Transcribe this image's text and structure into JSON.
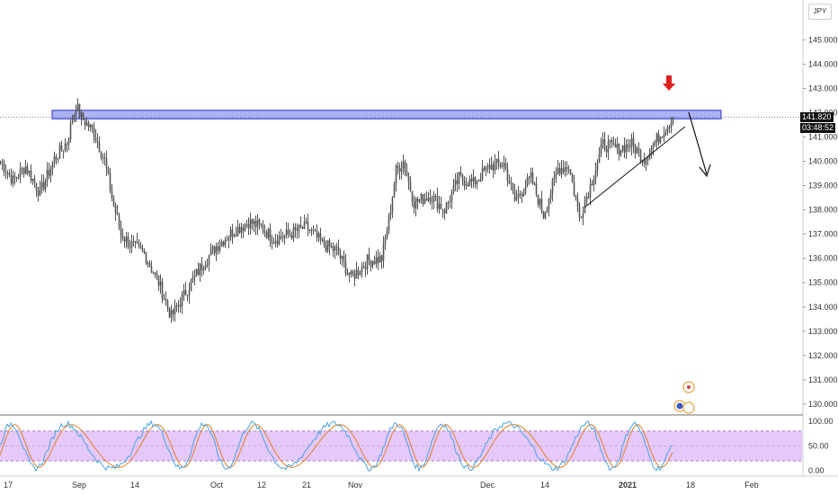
{
  "currency": "JPY",
  "last_price_label": "141.820",
  "countdown_label": "03:48:52",
  "chart_data": [
    {
      "type": "candlestick",
      "title": "",
      "ylim": [
        129.7,
        146.2
      ],
      "y_ticks": [
        "145.000",
        "144.000",
        "143.000",
        "142.000",
        "141.000",
        "140.000",
        "139.000",
        "138.000",
        "137.000",
        "136.000",
        "135.000",
        "134.000",
        "133.000",
        "132.000",
        "131.000",
        "130.000"
      ],
      "x_tick_labels": [
        "17",
        "Sep",
        "14",
        "Oct",
        "12",
        "21",
        "Nov",
        "Dec",
        "14",
        "2021",
        "18",
        "Feb"
      ],
      "price_path": [
        {
          "i": 0,
          "v": 140.0
        },
        {
          "i": 14,
          "v": 139.2
        },
        {
          "i": 28,
          "v": 139.8
        },
        {
          "i": 44,
          "v": 138.7
        },
        {
          "i": 60,
          "v": 140.1
        },
        {
          "i": 74,
          "v": 140.8
        },
        {
          "i": 84,
          "v": 142.3
        },
        {
          "i": 90,
          "v": 141.8
        },
        {
          "i": 104,
          "v": 141.2
        },
        {
          "i": 116,
          "v": 140.0
        },
        {
          "i": 124,
          "v": 138.5
        },
        {
          "i": 134,
          "v": 137.0
        },
        {
          "i": 144,
          "v": 136.6
        },
        {
          "i": 160,
          "v": 136.2
        },
        {
          "i": 176,
          "v": 135.0
        },
        {
          "i": 190,
          "v": 133.6
        },
        {
          "i": 206,
          "v": 134.6
        },
        {
          "i": 222,
          "v": 135.6
        },
        {
          "i": 240,
          "v": 136.5
        },
        {
          "i": 258,
          "v": 137.1
        },
        {
          "i": 276,
          "v": 137.5
        },
        {
          "i": 290,
          "v": 137.3
        },
        {
          "i": 304,
          "v": 136.8
        },
        {
          "i": 322,
          "v": 137.0
        },
        {
          "i": 340,
          "v": 137.3
        },
        {
          "i": 358,
          "v": 136.6
        },
        {
          "i": 374,
          "v": 136.3
        },
        {
          "i": 390,
          "v": 135.2
        },
        {
          "i": 408,
          "v": 135.9
        },
        {
          "i": 424,
          "v": 136.0
        },
        {
          "i": 432,
          "v": 137.6
        },
        {
          "i": 440,
          "v": 139.6
        },
        {
          "i": 448,
          "v": 140.0
        },
        {
          "i": 460,
          "v": 138.3
        },
        {
          "i": 478,
          "v": 138.6
        },
        {
          "i": 494,
          "v": 138.0
        },
        {
          "i": 510,
          "v": 139.3
        },
        {
          "i": 526,
          "v": 139.1
        },
        {
          "i": 544,
          "v": 139.8
        },
        {
          "i": 560,
          "v": 139.9
        },
        {
          "i": 572,
          "v": 138.4
        },
        {
          "i": 590,
          "v": 139.3
        },
        {
          "i": 604,
          "v": 137.8
        },
        {
          "i": 620,
          "v": 139.7
        },
        {
          "i": 632,
          "v": 139.8
        },
        {
          "i": 644,
          "v": 137.7
        },
        {
          "i": 656,
          "v": 139.0
        },
        {
          "i": 670,
          "v": 140.7
        },
        {
          "i": 686,
          "v": 140.5
        },
        {
          "i": 702,
          "v": 140.7
        },
        {
          "i": 716,
          "v": 140.1
        },
        {
          "i": 728,
          "v": 140.8
        },
        {
          "i": 740,
          "v": 141.4
        },
        {
          "i": 748,
          "v": 141.8
        }
      ],
      "resistance_zone": [
        141.75,
        142.1
      ],
      "last_price": 141.82,
      "stochastic": {
        "ylim": [
          -5,
          105
        ],
        "y_ticks": [
          "100.00",
          "50.00",
          "0.00"
        ],
        "upper_band": 80,
        "lower_band": 20
      }
    }
  ],
  "colors": {
    "candles": "#555555",
    "zone_fill": "#9da6f2",
    "zone_border": "#2b2fd6",
    "last_price_bg": "#111111",
    "arrow_red": "#e02020",
    "stoch_fill": "#e6c8fb",
    "stoch_k": "#4aa3e0",
    "stoch_d": "#e0802a"
  },
  "icons": [
    "red-down-arrow-icon",
    "events-icon"
  ]
}
